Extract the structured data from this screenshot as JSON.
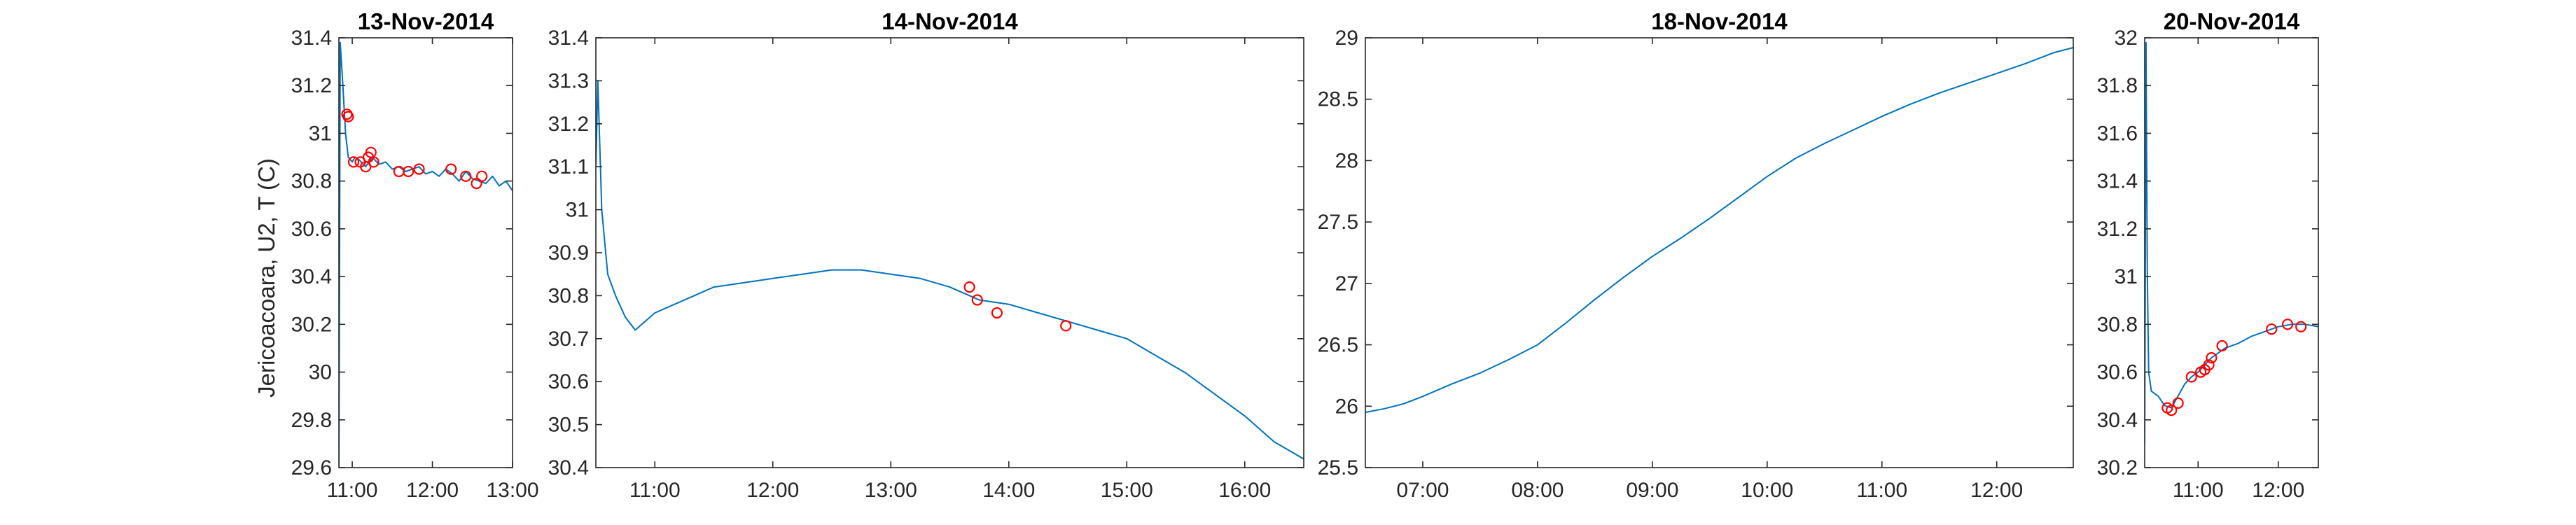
{
  "figure": {
    "ylabel": "Jericoacoara, U2, T (C)",
    "line_color": "#0072BD",
    "marker_color": "#FF0000"
  },
  "chart_data": [
    {
      "type": "line",
      "title": "13-Nov-2014",
      "xlim": [
        "10:50",
        "13:00"
      ],
      "ylim": [
        29.6,
        31.4
      ],
      "xticks": [
        "11:00",
        "12:00",
        "13:00"
      ],
      "yticks": [
        "29.6",
        "29.8",
        "30",
        "30.2",
        "30.4",
        "30.6",
        "30.8",
        "31",
        "31.2",
        "31.4"
      ],
      "series": [
        {
          "x": [
            "10:50",
            "10:51",
            "10:53",
            "10:55",
            "10:57",
            "11:00",
            "11:02",
            "11:05",
            "11:10",
            "11:15",
            "11:20",
            "11:25",
            "11:30",
            "11:35",
            "11:40",
            "11:45",
            "11:50",
            "11:55",
            "12:00",
            "12:05",
            "12:10",
            "12:15",
            "12:20",
            "12:25",
            "12:30",
            "12:35",
            "12:40",
            "12:45",
            "12:50",
            "12:55",
            "13:00"
          ],
          "y": [
            29.6,
            31.38,
            31.2,
            31.0,
            30.9,
            30.88,
            30.9,
            30.89,
            30.86,
            30.9,
            30.87,
            30.88,
            30.85,
            30.86,
            30.84,
            30.85,
            30.86,
            30.83,
            30.84,
            30.82,
            30.85,
            30.83,
            30.8,
            30.84,
            30.81,
            30.8,
            30.79,
            30.82,
            30.78,
            30.8,
            30.76
          ]
        }
      ],
      "markers": {
        "x": [
          "10:56",
          "10:57",
          "11:01",
          "11:06",
          "11:10",
          "11:12",
          "11:14",
          "11:16",
          "11:35",
          "11:42",
          "11:50",
          "12:14",
          "12:25",
          "12:33",
          "12:37"
        ],
        "y": [
          31.08,
          31.07,
          30.88,
          30.88,
          30.86,
          30.9,
          30.92,
          30.88,
          30.84,
          30.84,
          30.85,
          30.85,
          30.82,
          30.79,
          30.82
        ]
      }
    },
    {
      "type": "line",
      "title": "14-Nov-2014",
      "xlim": [
        "10:30",
        "16:30"
      ],
      "ylim": [
        30.4,
        31.4
      ],
      "xticks": [
        "11:00",
        "12:00",
        "13:00",
        "14:00",
        "15:00",
        "16:00"
      ],
      "yticks": [
        "30.4",
        "30.5",
        "30.6",
        "30.7",
        "30.8",
        "30.9",
        "31",
        "31.1",
        "31.2",
        "31.3",
        "31.4"
      ],
      "series": [
        {
          "x": [
            "10:30",
            "10:31",
            "10:33",
            "10:36",
            "10:40",
            "10:45",
            "10:50",
            "11:00",
            "11:10",
            "11:20",
            "11:30",
            "11:45",
            "12:00",
            "12:15",
            "12:30",
            "12:45",
            "13:00",
            "13:15",
            "13:30",
            "13:45",
            "14:00",
            "14:15",
            "14:30",
            "14:45",
            "15:00",
            "15:15",
            "15:30",
            "15:45",
            "16:00",
            "16:15",
            "16:30"
          ],
          "y": [
            31.1,
            31.3,
            31.0,
            30.85,
            30.8,
            30.75,
            30.72,
            30.76,
            30.78,
            30.8,
            30.82,
            30.83,
            30.84,
            30.85,
            30.86,
            30.86,
            30.85,
            30.84,
            30.82,
            30.79,
            30.78,
            30.76,
            30.74,
            30.72,
            30.7,
            30.66,
            30.62,
            30.57,
            30.52,
            30.46,
            30.42
          ]
        }
      ],
      "markers": {
        "x": [
          "13:40",
          "13:44",
          "13:54",
          "14:29"
        ],
        "y": [
          30.82,
          30.79,
          30.76,
          30.73
        ]
      }
    },
    {
      "type": "line",
      "title": "18-Nov-2014",
      "xlim": [
        "06:30",
        "12:40"
      ],
      "ylim": [
        25.5,
        29
      ],
      "xticks": [
        "07:00",
        "08:00",
        "09:00",
        "10:00",
        "11:00",
        "12:00"
      ],
      "yticks": [
        "25.5",
        "26",
        "26.5",
        "27",
        "27.5",
        "28",
        "28.5",
        "29"
      ],
      "series": [
        {
          "x": [
            "06:30",
            "06:40",
            "06:50",
            "07:00",
            "07:15",
            "07:30",
            "07:45",
            "08:00",
            "08:15",
            "08:30",
            "08:45",
            "09:00",
            "09:15",
            "09:30",
            "09:45",
            "10:00",
            "10:15",
            "10:30",
            "10:45",
            "11:00",
            "11:15",
            "11:30",
            "11:45",
            "12:00",
            "12:15",
            "12:30",
            "12:40"
          ],
          "y": [
            25.95,
            25.98,
            26.02,
            26.08,
            26.18,
            26.27,
            26.38,
            26.5,
            26.68,
            26.87,
            27.05,
            27.22,
            27.37,
            27.53,
            27.7,
            27.87,
            28.02,
            28.14,
            28.25,
            28.36,
            28.46,
            28.55,
            28.63,
            28.71,
            28.79,
            28.88,
            28.92
          ]
        }
      ],
      "markers": {
        "x": [],
        "y": []
      }
    },
    {
      "type": "line",
      "title": "20-Nov-2014",
      "xlim": [
        "10:20",
        "12:30"
      ],
      "ylim": [
        30.2,
        32
      ],
      "xticks": [
        "11:00",
        "12:00"
      ],
      "yticks": [
        "30.2",
        "30.4",
        "30.6",
        "30.8",
        "31",
        "31.2",
        "31.4",
        "31.6",
        "31.8",
        "32"
      ],
      "series": [
        {
          "x": [
            "10:20",
            "10:21",
            "10:22",
            "10:23",
            "10:25",
            "10:30",
            "10:35",
            "10:40",
            "10:45",
            "10:50",
            "10:55",
            "11:00",
            "11:05",
            "11:10",
            "11:15",
            "11:20",
            "11:30",
            "11:40",
            "11:50",
            "12:00",
            "12:10",
            "12:20",
            "12:30"
          ],
          "y": [
            30.3,
            31.98,
            31.0,
            30.6,
            30.52,
            30.5,
            30.46,
            30.45,
            30.5,
            30.55,
            30.58,
            30.6,
            30.63,
            30.66,
            30.68,
            30.7,
            30.72,
            30.75,
            30.77,
            30.79,
            30.8,
            30.8,
            30.79
          ]
        }
      ],
      "markers": {
        "x": [
          "10:37",
          "10:40",
          "10:45",
          "10:55",
          "11:02",
          "11:05",
          "11:08",
          "11:10",
          "11:18",
          "11:55",
          "12:07",
          "12:17"
        ],
        "y": [
          30.45,
          30.44,
          30.47,
          30.58,
          30.6,
          30.61,
          30.63,
          30.66,
          30.71,
          30.78,
          30.8,
          30.79
        ]
      }
    }
  ]
}
